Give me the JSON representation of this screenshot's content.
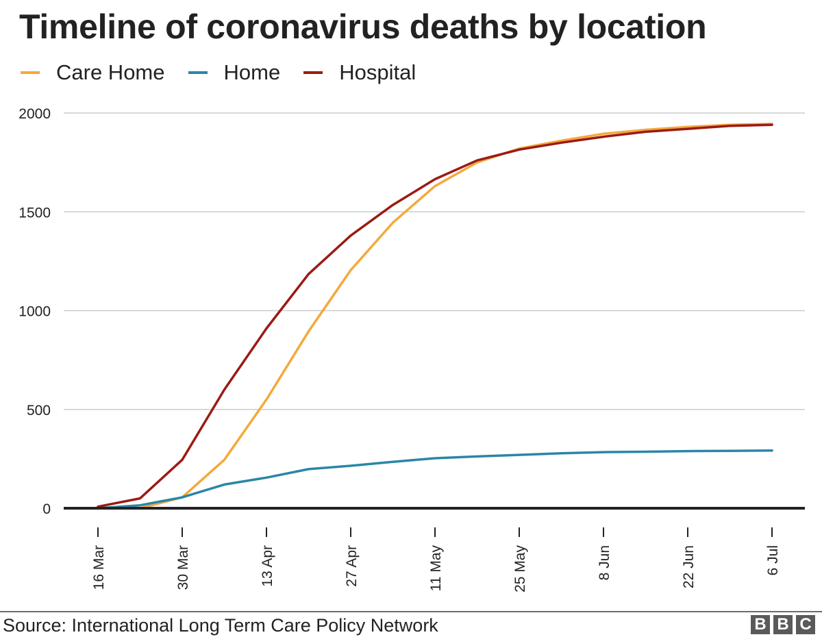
{
  "chart_data": {
    "type": "line",
    "title": "Timeline of coronavirus deaths by location",
    "xlabel": "",
    "ylabel": "",
    "x": [
      "2020-03-16",
      "2020-03-23",
      "2020-03-30",
      "2020-04-06",
      "2020-04-13",
      "2020-04-20",
      "2020-04-27",
      "2020-05-04",
      "2020-05-11",
      "2020-05-18",
      "2020-05-25",
      "2020-06-01",
      "2020-06-08",
      "2020-06-15",
      "2020-06-22",
      "2020-06-29",
      "2020-07-06"
    ],
    "x_ticks": [
      "16 Mar",
      "30 Mar",
      "13 Apr",
      "27 Apr",
      "11 May",
      "25 May",
      "8 Jun",
      "22 Jun",
      "6 Jul"
    ],
    "ylim": [
      0,
      2000
    ],
    "y_ticks": [
      "0",
      "500",
      "1000",
      "1500",
      "2000"
    ],
    "grid": true,
    "legend_position": "top-left",
    "series": [
      {
        "name": "Care Home",
        "color": "#f4a93b",
        "values": [
          0,
          0,
          55,
          245,
          550,
          895,
          1205,
          1445,
          1630,
          1750,
          1820,
          1860,
          1895,
          1915,
          1930,
          1940,
          1945
        ]
      },
      {
        "name": "Home",
        "color": "#2a86a8",
        "values": [
          0,
          15,
          55,
          120,
          155,
          198,
          215,
          235,
          253,
          262,
          270,
          278,
          284,
          286,
          289,
          290,
          292
        ]
      },
      {
        "name": "Hospital",
        "color": "#9a1b15",
        "values": [
          8,
          50,
          245,
          600,
          910,
          1185,
          1380,
          1535,
          1665,
          1760,
          1815,
          1850,
          1880,
          1905,
          1920,
          1935,
          1940
        ]
      }
    ]
  },
  "footer": {
    "source": "Source: International Long Term Care Policy Network",
    "logo_letters": [
      "B",
      "B",
      "C"
    ]
  }
}
